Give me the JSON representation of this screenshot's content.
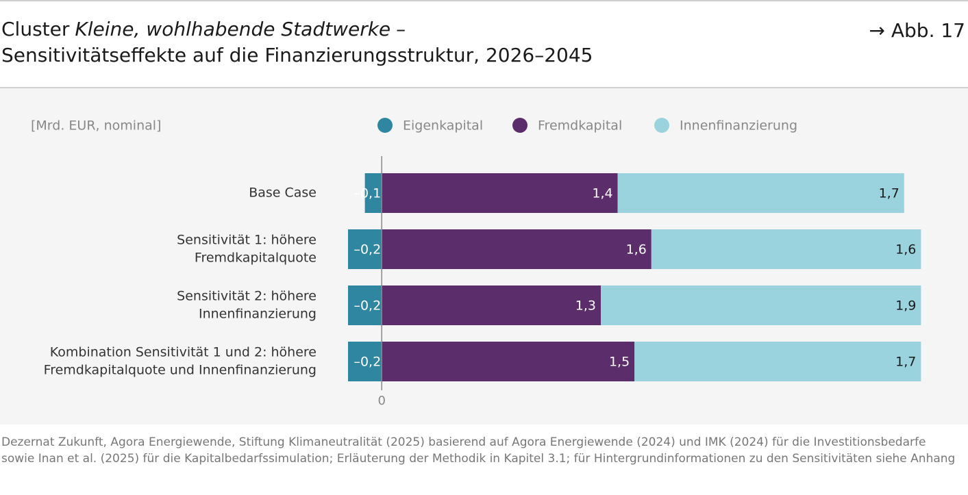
{
  "header": {
    "title_prefix": "Cluster",
    "title_emphasis": "Kleine, wohlhabende Stadtwerke",
    "title_suffix": "–",
    "title_line2": "Sensitivitätseffekte auf die Finanzierungsstruktur, 2026–2045",
    "figure_ref": "→ Abb. 17"
  },
  "chart_data": {
    "type": "stacked-bar-horizontal",
    "unit_label": "[Mrd. EUR, nominal]",
    "categories": [
      [
        "Base Case"
      ],
      [
        "Sensitivität 1: höhere",
        "Fremdkapitalquote"
      ],
      [
        "Sensitivität 2: höhere",
        "Innenfinanzierung"
      ],
      [
        "Kombination Sensitivität 1 und 2: höhere",
        "Fremdkapitalquote und Innenfinanzierung"
      ]
    ],
    "series": [
      {
        "name": "Eigenkapital",
        "color": "#2e86a0",
        "label_color": "#ffffff",
        "values": [
          -0.1,
          -0.2,
          -0.2,
          -0.2
        ],
        "value_labels": [
          "–0,1",
          "–0,2",
          "–0,2",
          "–0,2"
        ]
      },
      {
        "name": "Fremdkapital",
        "color": "#5c2d6b",
        "label_color": "#ffffff",
        "values": [
          1.4,
          1.6,
          1.3,
          1.5
        ],
        "value_labels": [
          "1,4",
          "1,6",
          "1,3",
          "1,5"
        ]
      },
      {
        "name": "Innenfinanzierung",
        "color": "#9ad3de",
        "label_color": "#1a1a1a",
        "values": [
          1.7,
          1.6,
          1.9,
          1.7
        ],
        "value_labels": [
          "1,7",
          "1,6",
          "1,9",
          "1,7"
        ]
      }
    ],
    "xlim": [
      -0.2,
      3.3
    ],
    "xticks": [
      0
    ],
    "legend": "top"
  },
  "footer": {
    "source": "Dezernat Zukunft, Agora Energiewende, Stiftung Klimaneutralität (2025) basierend auf Agora Energiewende (2024) und IMK (2024) für die Investitionsbedarfe sowie Inan et al. (2025) für die Kapitalbedarfssimulation; Erläuterung der Methodik in Kapitel 3.1; für Hintergrundinformationen zu den Sensitivitäten siehe Anhang"
  }
}
